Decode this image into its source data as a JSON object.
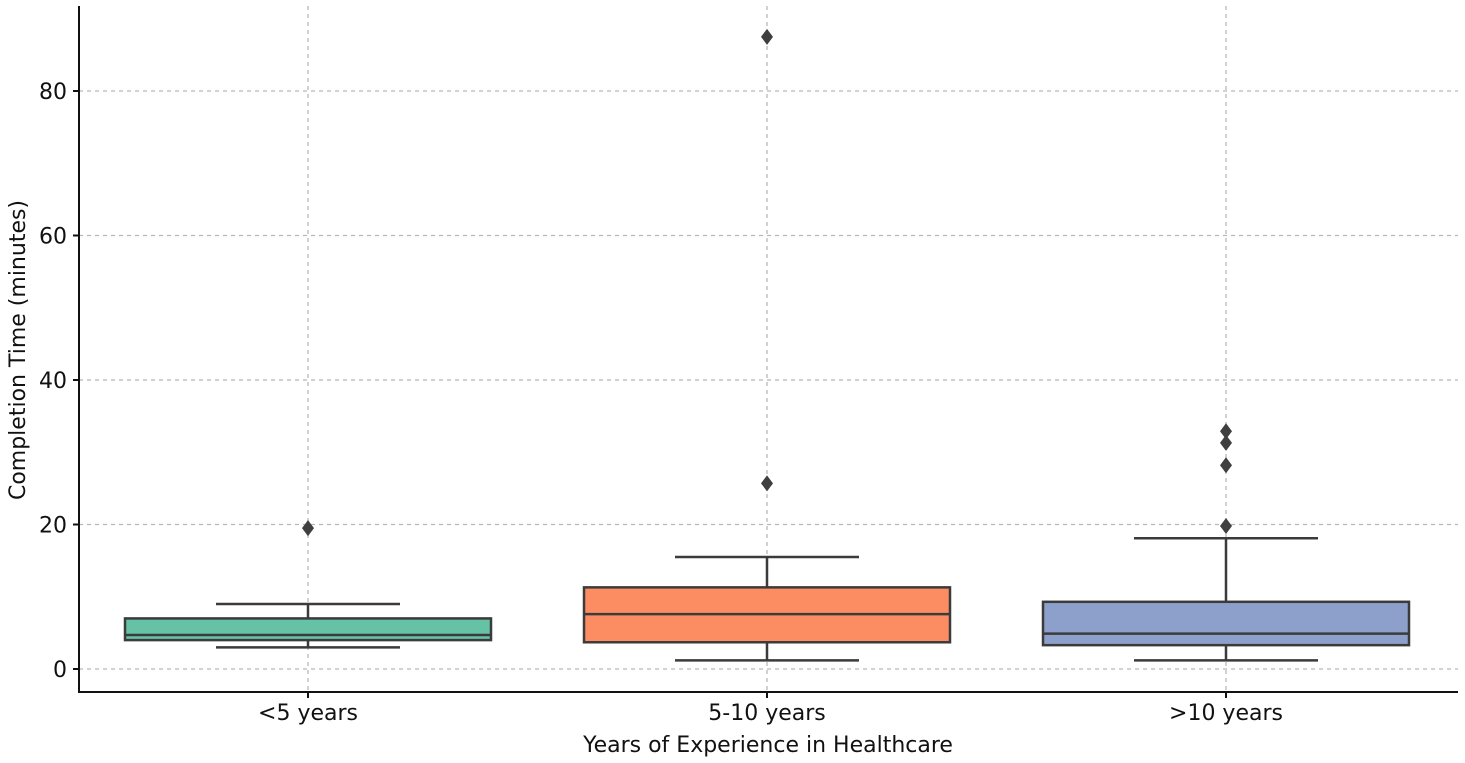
{
  "chart_data": {
    "type": "box",
    "xlabel": "Years of Experience in Healthcare",
    "ylabel": "Completion Time (minutes)",
    "ylim": [
      -3,
      92
    ],
    "yticks": [
      0,
      20,
      40,
      60,
      80
    ],
    "grid": true,
    "categories": [
      "<5 years",
      "5-10 years",
      ">10 years"
    ],
    "colors": [
      "#66c2a5",
      "#fc8d62",
      "#8da0cb"
    ],
    "boxes": [
      {
        "category": "<5 years",
        "whisker_low": 3,
        "q1": 4,
        "median": 4.7,
        "q3": 7,
        "whisker_high": 9,
        "outliers": [
          19.5
        ]
      },
      {
        "category": "5-10 years",
        "whisker_low": 1.2,
        "q1": 3.7,
        "median": 7.6,
        "q3": 11.3,
        "whisker_high": 15.5,
        "outliers": [
          25.7,
          87.5
        ]
      },
      {
        "category": ">10 years",
        "whisker_low": 1.2,
        "q1": 3.3,
        "median": 4.9,
        "q3": 9.3,
        "whisker_high": 18.1,
        "outliers": [
          19.8,
          28.2,
          31.3,
          32.9
        ]
      }
    ]
  }
}
